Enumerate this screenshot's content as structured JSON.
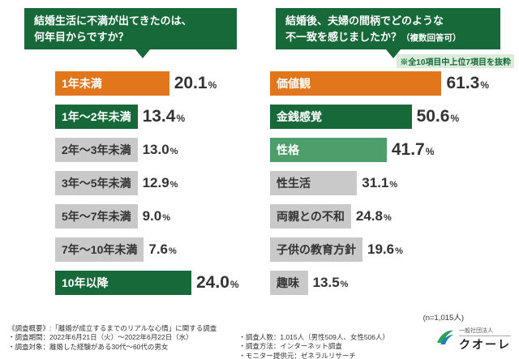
{
  "colors": {
    "dark_green": "#17693a",
    "medium_green": "#4d9e6b",
    "orange": "#e2761b",
    "gray": "#c9c9c9",
    "text_dark": "#333333"
  },
  "left_panel": {
    "question_line1": "結婚生活に不満が出てきたのは、",
    "question_line2": "何年目からですか？"
  },
  "right_panel": {
    "question_line1": "結婚後、夫婦の間柄でどのような",
    "question_line2": "不一致を感じましたか？",
    "question_note": "（複数回答可）",
    "excerpt_note": "※全10項目中上位7項目を抜粋"
  },
  "chart_data": [
    {
      "type": "bar",
      "orientation": "horizontal",
      "title": "結婚生活に不満が出てきたのは、何年目からですか？",
      "categories": [
        "1年未満",
        "1年～2年未満",
        "2年～3年未満",
        "3年～5年未満",
        "5年～7年未満",
        "7年～10年未満",
        "10年以降"
      ],
      "values": [
        20.1,
        13.4,
        13.0,
        12.9,
        9.0,
        7.6,
        24.0
      ],
      "unit": "%",
      "bar_colors": [
        "orange",
        "dark_green",
        "gray",
        "gray",
        "gray",
        "gray",
        "dark_green"
      ],
      "xlim": [
        0,
        100
      ],
      "grid": false,
      "legend": "none"
    },
    {
      "type": "bar",
      "orientation": "horizontal",
      "title": "結婚後、夫婦の間柄でどのような不一致を感じましたか？（複数回答可）",
      "categories": [
        "価値観",
        "金銭感覚",
        "性格",
        "性生活",
        "両親との不和",
        "子供の教育方針",
        "趣味"
      ],
      "values": [
        61.3,
        50.6,
        41.7,
        31.1,
        24.8,
        19.6,
        13.5
      ],
      "unit": "%",
      "bar_colors": [
        "orange",
        "dark_green",
        "medium_green",
        "gray",
        "gray",
        "gray",
        "gray"
      ],
      "xlim": [
        0,
        100
      ],
      "grid": false,
      "legend": "none",
      "note": "※全10項目中上位7項目を抜粋"
    }
  ],
  "footer": {
    "n_note": "(n=1,015人)",
    "survey_title": "《調査概要》:「離婚が成立するまでのリアルな心情」に関する調査",
    "lines_left": [
      "・調査期間：2022年6月21日（火）～2022年6月22日（水）",
      "・調査対象：離婚した経験がある30代～60代の男女"
    ],
    "lines_right": [
      "・調査人数：1,015人（男性509人、女性506人）",
      "・調査方法：インターネット調査",
      "・モニター提供元：ゼネラルリサーチ"
    ],
    "logo": {
      "org": "一般社団法人",
      "name": "クオーレ"
    }
  }
}
